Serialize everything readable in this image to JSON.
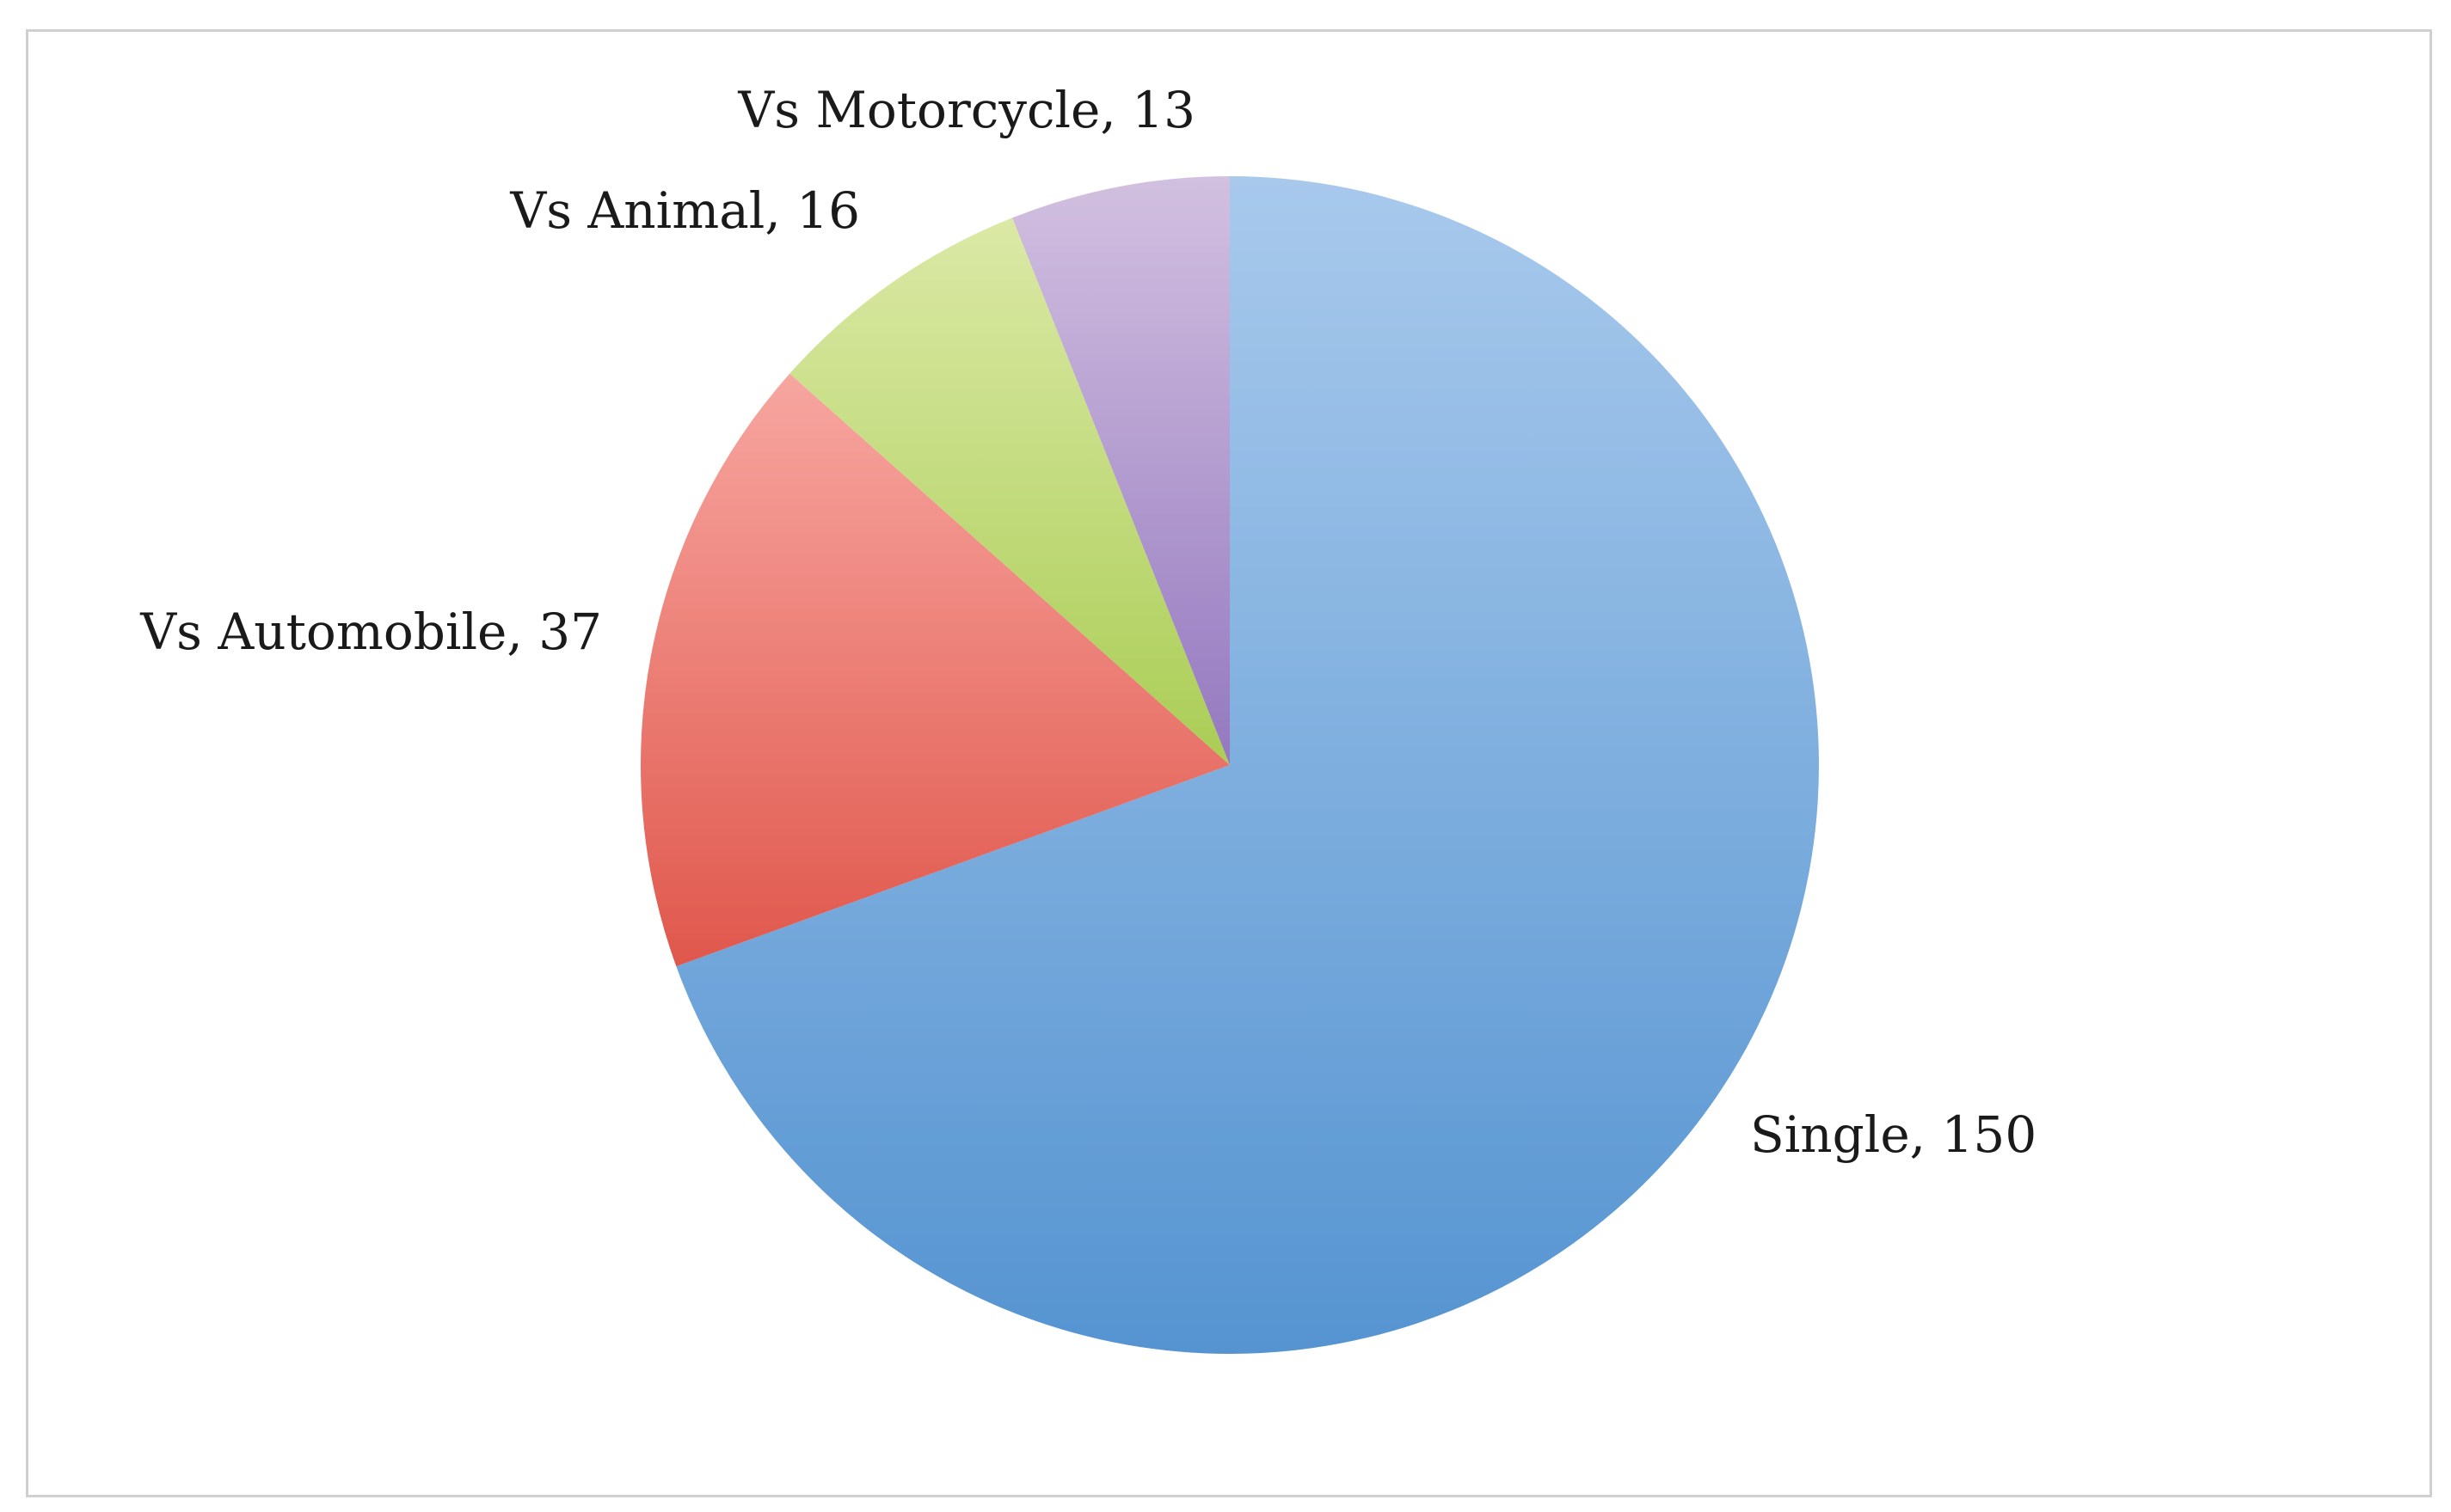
{
  "chart_data": {
    "type": "pie",
    "title": "",
    "slices": [
      {
        "label": "Single",
        "value": 150,
        "display": "Single, 150",
        "color_light": "#a8c9ec",
        "color_dark": "#5594d1"
      },
      {
        "label": "Vs Automobile",
        "value": 37,
        "display": "Vs Automobile, 37",
        "color_light": "#f7a6a0",
        "color_dark": "#e0574c"
      },
      {
        "label": "Vs Animal",
        "value": 16,
        "display": "Vs Animal, 16",
        "color_light": "#dbe9a6",
        "color_dark": "#aacd55"
      },
      {
        "label": "Vs Motorcycle",
        "value": 13,
        "display": "Vs Motorcycle, 13",
        "color_light": "#d2c0e0",
        "color_dark": "#9478bf"
      }
    ],
    "start_angle": "12 o'clock",
    "direction": "clockwise",
    "legend": "none",
    "labels": "outside, category and value"
  }
}
